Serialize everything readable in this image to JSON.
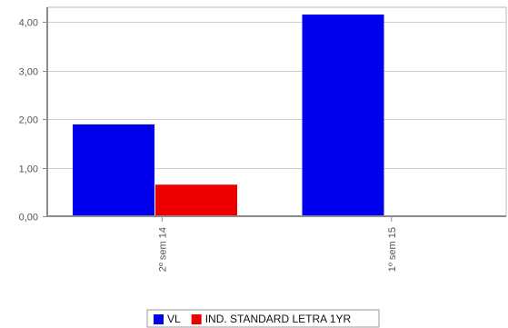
{
  "chart_data": {
    "type": "bar",
    "categories": [
      "2º sem  14",
      "1º sem  15"
    ],
    "series": [
      {
        "name": "VL",
        "color": "#0000ee",
        "values": [
          1.89,
          4.15
        ]
      },
      {
        "name": "IND. STANDARD LETRA 1YR",
        "color": "#ee0000",
        "values": [
          0.65,
          0
        ]
      }
    ],
    "y_ticks": [
      "0,00",
      "1,00",
      "2,00",
      "3,00",
      "4,00"
    ],
    "ylim": [
      0,
      4.3
    ],
    "grid": true,
    "legend_position": "bottom-center"
  }
}
